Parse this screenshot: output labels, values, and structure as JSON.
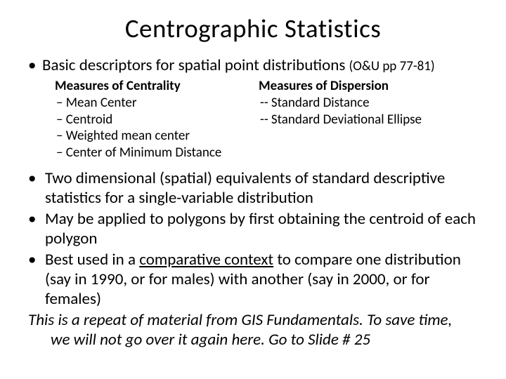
{
  "title": "Centrographic Statistics",
  "intro": {
    "bullet": "•",
    "text": "Basic  descriptors for spatial point distributions ",
    "ref": "(O&U pp 77-81)"
  },
  "left": {
    "head": "Measures of Centrality",
    "items": [
      "–   Mean Center",
      "–   Centroid",
      "–   Weighted mean center",
      "–   Center of Minimum Distance"
    ]
  },
  "right": {
    "head": "Measures of Dispersion",
    "items": [
      " --  Standard Distance",
      " --  Standard Deviational Ellipse"
    ]
  },
  "bullets": [
    {
      "dot": "•",
      "pre": "Two dimensional (spatial) equivalents of standard descriptive statistics for a single-variable distribution"
    },
    {
      "dot": "•",
      "pre": "May be applied to polygons by first obtaining the centroid of each polygon"
    },
    {
      "dot": "•",
      "pre": "Best used in a ",
      "u": "comparative context",
      "post": " to compare one distribution (say in 1990, or for males) with another (say in 2000, or for females)"
    }
  ],
  "footer": {
    "line1": "This is a repeat of material from GIS Fundamentals.  To save time,",
    "line2": "we will not go over it again here. Go to Slide # 25"
  }
}
